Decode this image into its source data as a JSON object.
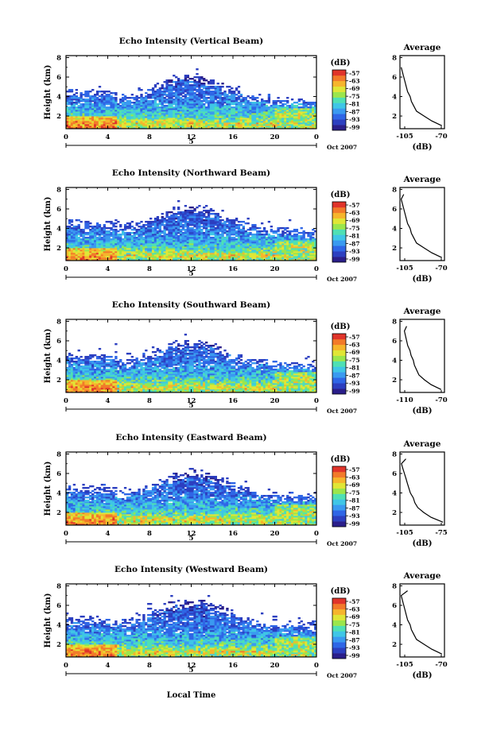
{
  "figure": {
    "colorbar_unit": "(dB)",
    "colorbar_ticks": [
      "-57",
      "-63",
      "-69",
      "-75",
      "-81",
      "-87",
      "-93",
      "-99"
    ],
    "colors": [
      "#2a1e8a",
      "#2c3fc0",
      "#2f66e6",
      "#3a9af0",
      "#3fc6e6",
      "#4fe0b4",
      "#9be64c",
      "#e0e636",
      "#f6b52c",
      "#f27a2a",
      "#e0342a"
    ],
    "x_ticks": [
      "0",
      "4",
      "8",
      "12",
      "16",
      "20",
      "0"
    ],
    "y_ticks": [
      "2",
      "4",
      "6",
      "8"
    ],
    "ylabel": "Height (km)",
    "date_text": "5",
    "month_label": "Oct 2007",
    "xlabel": "Local Time",
    "avg_title": "Average",
    "avg_xlabel": "(dB)"
  },
  "chart_data": [
    {
      "type": "heatmap",
      "title": "Echo Intensity (Vertical Beam)",
      "x_range_hours": [
        0,
        24
      ],
      "y_range_km": [
        0.7,
        8.2
      ],
      "echo_top_km": 6.2,
      "avg_profile": {
        "type": "line",
        "xlim": [
          -105,
          -70
        ],
        "xtick_labels": [
          "-105",
          "-70"
        ],
        "ylim": [
          0.7,
          8.2
        ],
        "y_km": [
          1.0,
          1.5,
          2.0,
          2.5,
          3.0,
          3.5,
          4.0,
          4.5,
          5.0,
          5.5,
          6.0,
          6.5,
          7.0
        ],
        "dB": [
          -72,
          -80,
          -86,
          -92,
          -94,
          -96,
          -97,
          -99,
          -100,
          -101,
          -102,
          -103,
          -104
        ]
      }
    },
    {
      "type": "heatmap",
      "title": "Echo Intensity (Northward Beam)",
      "x_range_hours": [
        0,
        24
      ],
      "y_range_km": [
        0.7,
        8.2
      ],
      "echo_top_km": 6.3,
      "avg_profile": {
        "type": "line",
        "xlim": [
          -105,
          -70
        ],
        "xtick_labels": [
          "-105",
          "-70"
        ],
        "ylim": [
          0.7,
          8.2
        ],
        "y_km": [
          1.0,
          1.5,
          2.0,
          2.5,
          3.0,
          3.5,
          4.0,
          4.5,
          5.0,
          5.5,
          6.0,
          6.5,
          7.0,
          7.5
        ],
        "dB": [
          -72,
          -80,
          -86,
          -92,
          -94,
          -96,
          -97,
          -99,
          -100,
          -101,
          -102,
          -103,
          -104,
          -102
        ]
      }
    },
    {
      "type": "heatmap",
      "title": "Echo Intensity (Southward Beam)",
      "x_range_hours": [
        0,
        24
      ],
      "y_range_km": [
        0.7,
        8.2
      ],
      "echo_top_km": 6.1,
      "avg_profile": {
        "type": "line",
        "xlim": [
          -110,
          -70
        ],
        "xtick_labels": [
          "-110",
          "-70"
        ],
        "ylim": [
          0.7,
          8.2
        ],
        "y_km": [
          1.0,
          1.5,
          2.0,
          2.5,
          3.0,
          3.5,
          4.0,
          4.5,
          5.0,
          5.5,
          6.0,
          6.5,
          7.0,
          7.5
        ],
        "dB": [
          -73,
          -82,
          -88,
          -93,
          -95,
          -97,
          -98,
          -100,
          -101,
          -103,
          -104,
          -105,
          -106,
          -104
        ]
      }
    },
    {
      "type": "heatmap",
      "title": "Echo Intensity (Eastward Beam)",
      "x_range_hours": [
        0,
        24
      ],
      "y_range_km": [
        0.7,
        8.2
      ],
      "echo_top_km": 6.2,
      "avg_profile": {
        "type": "line",
        "xlim": [
          -105,
          -75
        ],
        "xtick_labels": [
          "-105",
          "-75"
        ],
        "ylim": [
          0.7,
          8.2
        ],
        "y_km": [
          1.0,
          1.5,
          2.0,
          2.5,
          3.0,
          3.5,
          4.0,
          4.5,
          5.0,
          5.5,
          6.0,
          6.5,
          7.0,
          7.5
        ],
        "dB": [
          -76,
          -84,
          -89,
          -93,
          -95,
          -96,
          -98,
          -99,
          -100,
          -101,
          -102,
          -103,
          -104,
          -101
        ]
      }
    },
    {
      "type": "heatmap",
      "title": "Echo Intensity (Westward Beam)",
      "x_range_hours": [
        0,
        24
      ],
      "y_range_km": [
        0.7,
        8.2
      ],
      "echo_top_km": 6.6,
      "avg_profile": {
        "type": "line",
        "xlim": [
          -105,
          -70
        ],
        "xtick_labels": [
          "-105",
          "-70"
        ],
        "ylim": [
          0.7,
          8.2
        ],
        "y_km": [
          1.0,
          1.5,
          2.0,
          2.5,
          3.0,
          3.5,
          4.0,
          4.5,
          5.0,
          5.5,
          6.0,
          6.5,
          7.0,
          7.5
        ],
        "dB": [
          -72,
          -80,
          -86,
          -92,
          -94,
          -96,
          -97,
          -99,
          -100,
          -101,
          -102,
          -103,
          -104,
          -99
        ]
      }
    }
  ]
}
